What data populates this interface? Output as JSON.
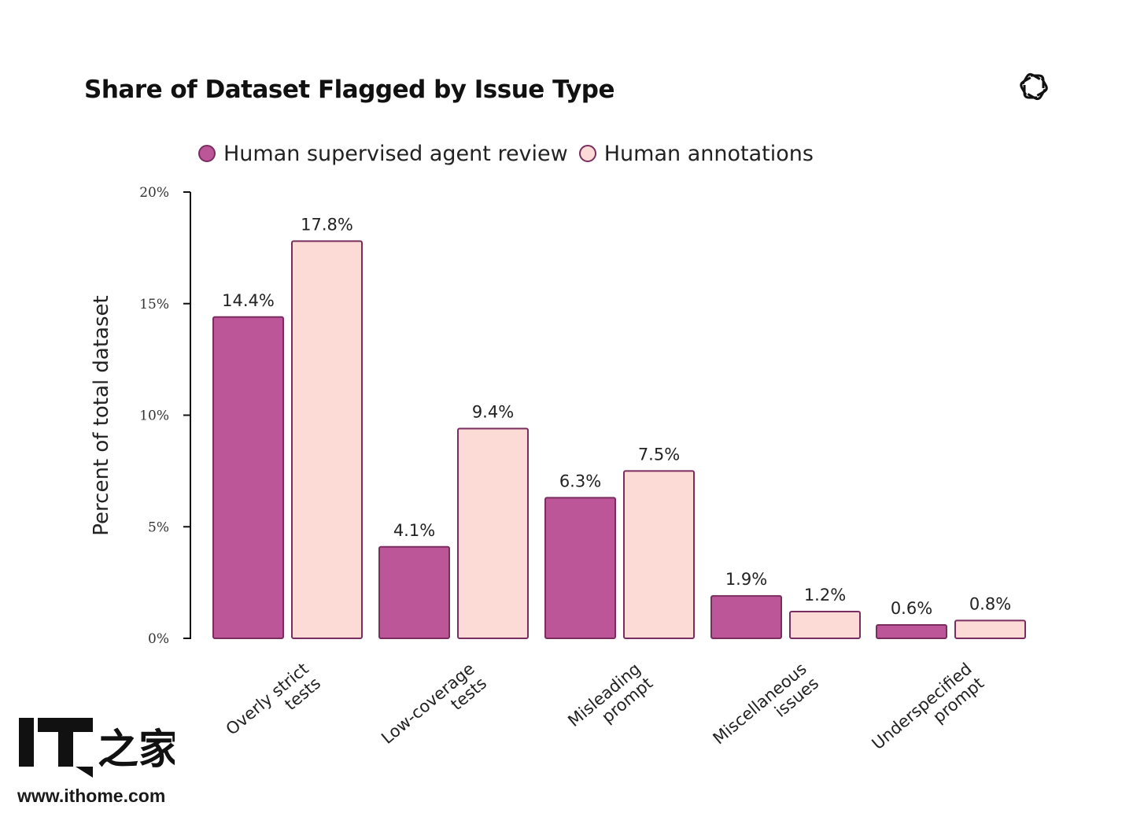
{
  "chart_data": {
    "type": "bar",
    "title": "Share of Dataset Flagged by Issue Type",
    "xlabel": "",
    "ylabel": "Percent of total dataset",
    "ylim": [
      0,
      20
    ],
    "yticks": [
      "0%",
      "5%",
      "10%",
      "15%",
      "20%"
    ],
    "ytick_values": [
      0,
      5,
      10,
      15,
      20
    ],
    "categories": [
      [
        "Overly strict",
        "tests"
      ],
      [
        "Low-coverage",
        "tests"
      ],
      [
        "Misleading",
        "prompt"
      ],
      [
        "Miscellaneous",
        "issues"
      ],
      [
        "Underspecified",
        "prompt"
      ]
    ],
    "series": [
      {
        "name": "Human supervised agent review",
        "color": "#bd5599",
        "values": [
          14.4,
          4.1,
          6.3,
          1.9,
          0.6
        ],
        "labels": [
          "14.4%",
          "4.1%",
          "6.3%",
          "1.9%",
          "0.6%"
        ]
      },
      {
        "name": "Human annotations",
        "color": "#fcdbd6",
        "values": [
          17.8,
          9.4,
          7.5,
          1.2,
          0.8
        ],
        "labels": [
          "17.8%",
          "9.4%",
          "7.5%",
          "1.2%",
          "0.8%"
        ]
      }
    ],
    "grid": false,
    "legend": "top-left"
  },
  "colors": {
    "bar_stroke": "#7a2e5f",
    "axis": "#111111",
    "text": "#222222"
  },
  "watermark": {
    "logo_text": "IT",
    "logo_suffix": "之家",
    "url": "www.ithome.com"
  },
  "brand_icon": "openai-logo-icon"
}
